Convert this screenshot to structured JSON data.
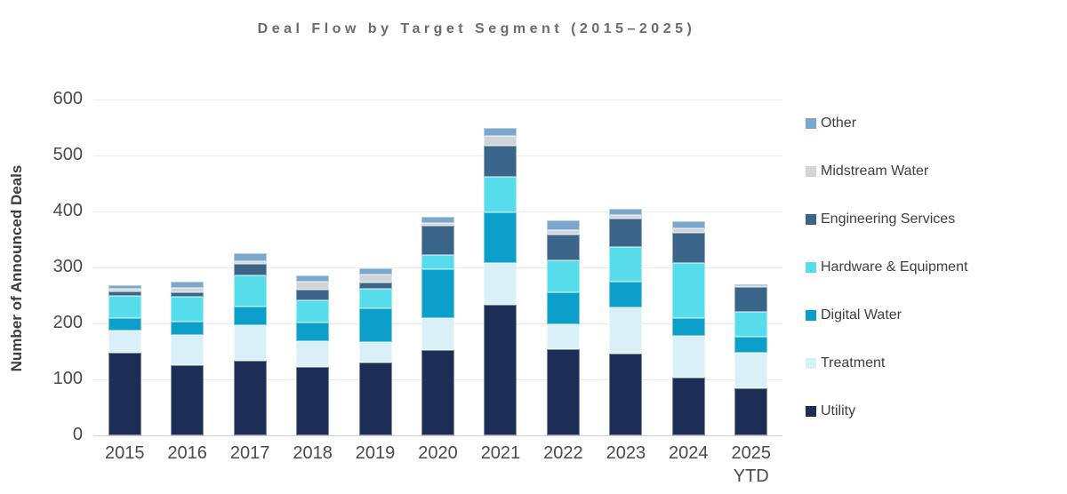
{
  "chart_data": {
    "type": "bar",
    "stacked": true,
    "title": "Deal Flow by Target Segment (2015–2025)",
    "ylabel": "Number of Announced Deals",
    "xlabel": "",
    "ylim": [
      0,
      600
    ],
    "y_ticks": [
      0,
      100,
      200,
      300,
      400,
      500,
      600
    ],
    "grid": "horizontal",
    "legend_position": "right",
    "categories": [
      "2015",
      "2016",
      "2017",
      "2018",
      "2019",
      "2020",
      "2021",
      "2022",
      "2023",
      "2024",
      "2025"
    ],
    "category_sub_labels": [
      "",
      "",
      "",
      "",
      "",
      "",
      "",
      "",
      "",
      "",
      "YTD"
    ],
    "series_stack_order": "bottom-to-top",
    "series": [
      {
        "name": "Utility",
        "color": "#1c2e55",
        "values": [
          147,
          125,
          134,
          123,
          130,
          152,
          234,
          154,
          146,
          103,
          84
        ]
      },
      {
        "name": "Treatment",
        "color": "#d9f0f8",
        "values": [
          40,
          54,
          63,
          46,
          36,
          58,
          74,
          44,
          83,
          75,
          63
        ]
      },
      {
        "name": "Digital Water",
        "color": "#0b9fc9",
        "values": [
          22,
          24,
          33,
          33,
          61,
          87,
          90,
          57,
          45,
          31,
          29
        ]
      },
      {
        "name": "Hardware & Equipment",
        "color": "#58ddec",
        "values": [
          40,
          44,
          56,
          40,
          35,
          25,
          64,
          58,
          62,
          99,
          45
        ]
      },
      {
        "name": "Engineering Services",
        "color": "#3a6588",
        "values": [
          8,
          9,
          20,
          18,
          11,
          52,
          55,
          45,
          52,
          54,
          44
        ]
      },
      {
        "name": "Midstream Water",
        "color": "#cfd5d8",
        "values": [
          5,
          7,
          6,
          14,
          14,
          5,
          18,
          9,
          5,
          8,
          2
        ]
      },
      {
        "name": "Other",
        "color": "#7ca7cc",
        "values": [
          6,
          12,
          14,
          12,
          11,
          12,
          15,
          17,
          12,
          12,
          3
        ]
      }
    ],
    "totals": [
      268,
      275,
      326,
      286,
      298,
      391,
      550,
      384,
      405,
      382,
      270
    ],
    "legend_items_top_to_bottom": [
      "Other",
      "Midstream Water",
      "Engineering Services",
      "Hardware & Equipment",
      "Digital Water",
      "Treatment",
      "Utility"
    ]
  },
  "colors": {
    "gridline": "#ececec",
    "baseline": "#cfcfcf",
    "title_text": "#6b6b6b",
    "axis_text": "#4a4a4a"
  }
}
